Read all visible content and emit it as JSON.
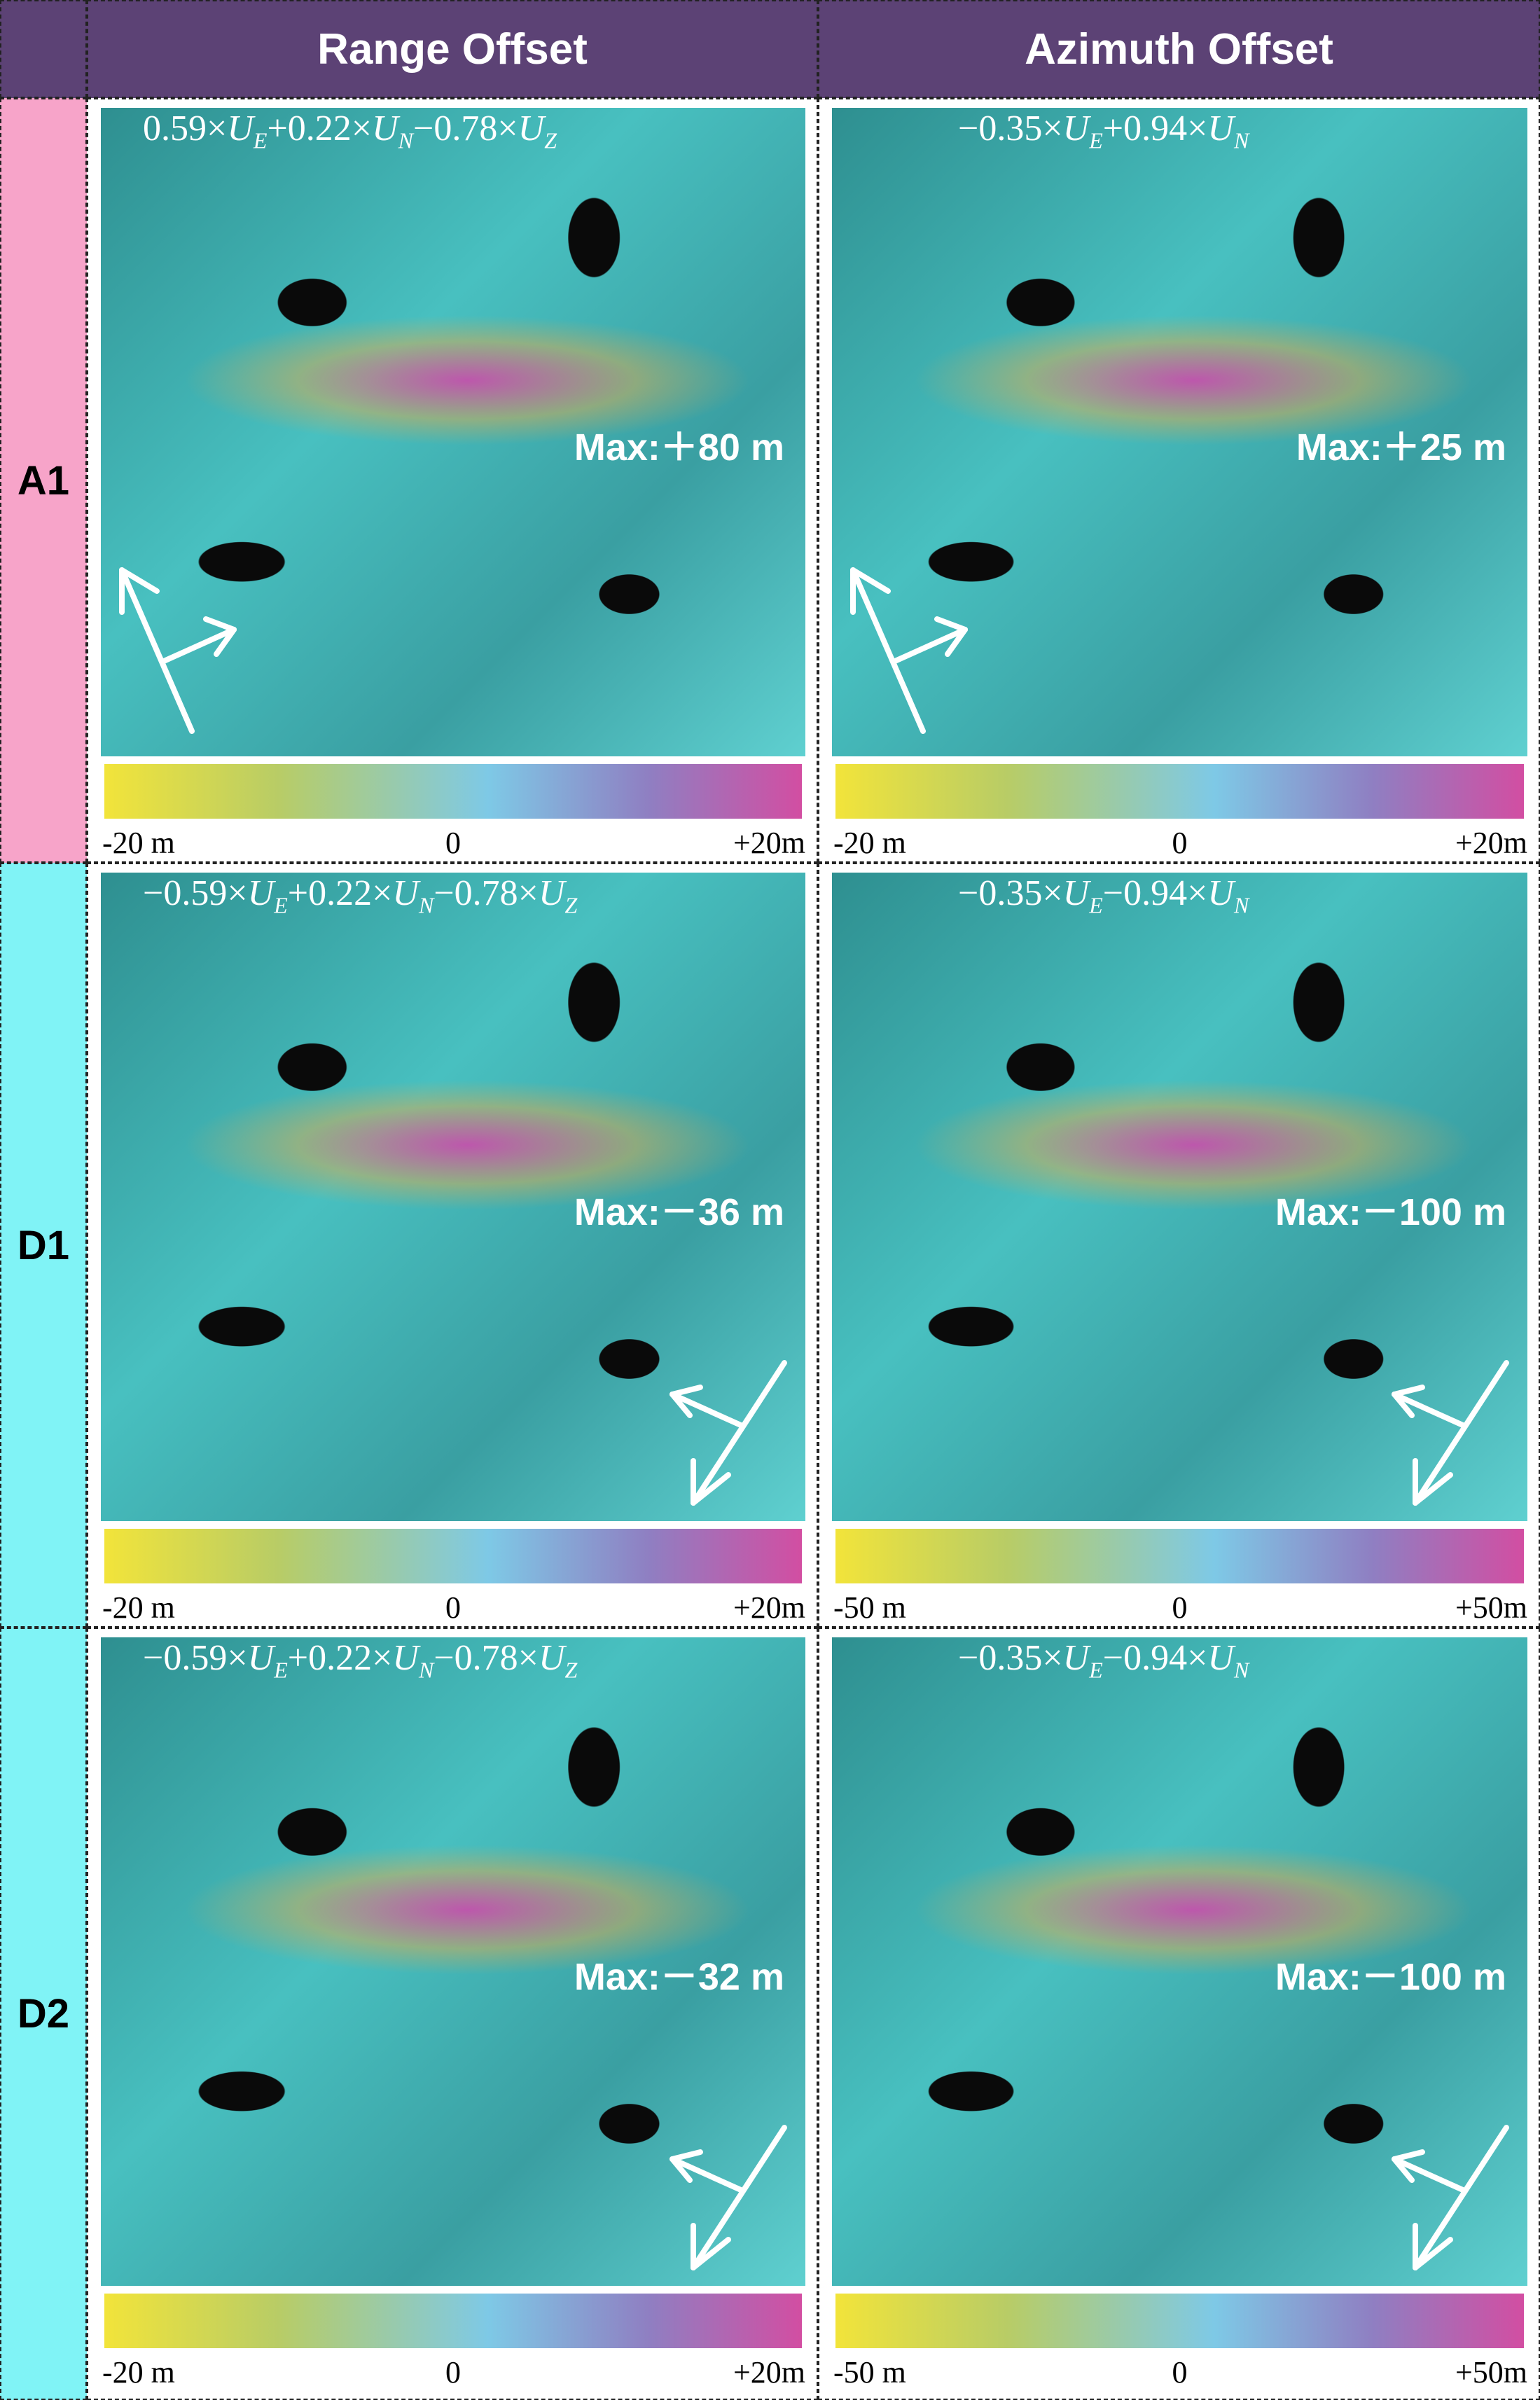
{
  "header": {
    "columns": [
      "Range Offset",
      "Azimuth Offset"
    ]
  },
  "rows": [
    {
      "label": "A1",
      "cells": [
        {
          "formula": [
            {
              "coef": "0.59×",
              "var": "U",
              "sub": "E"
            },
            {
              "coef": "+0.22×",
              "var": "U",
              "sub": "N"
            },
            {
              "coef": "−0.78×",
              "var": "U",
              "sub": "Z"
            }
          ],
          "max": "Max:＋80 m",
          "colorbar": {
            "left": "-20 m",
            "mid": "0",
            "right": "+20m"
          }
        },
        {
          "formula": [
            {
              "coef": "−0.35×",
              "var": "U",
              "sub": "E"
            },
            {
              "coef": "+0.94×",
              "var": "U",
              "sub": "N"
            }
          ],
          "max": "Max:＋25 m",
          "colorbar": {
            "left": "-20 m",
            "mid": "0",
            "right": "+20m"
          }
        }
      ]
    },
    {
      "label": "D1",
      "cells": [
        {
          "formula": [
            {
              "coef": "−0.59×",
              "var": "U",
              "sub": "E"
            },
            {
              "coef": "+0.22×",
              "var": "U",
              "sub": "N"
            },
            {
              "coef": "−0.78×",
              "var": "U",
              "sub": "Z"
            }
          ],
          "max": "Max:－36 m",
          "colorbar": {
            "left": "-20 m",
            "mid": "0",
            "right": "+20m"
          }
        },
        {
          "formula": [
            {
              "coef": "−0.35×",
              "var": "U",
              "sub": "E"
            },
            {
              "coef": "−0.94×",
              "var": "U",
              "sub": "N"
            }
          ],
          "max": "Max:－100 m",
          "colorbar": {
            "left": "-50 m",
            "mid": "0",
            "right": "+50m"
          }
        }
      ]
    },
    {
      "label": "D2",
      "cells": [
        {
          "formula": [
            {
              "coef": "−0.59×",
              "var": "U",
              "sub": "E"
            },
            {
              "coef": "+0.22×",
              "var": "U",
              "sub": "N"
            },
            {
              "coef": "−0.78×",
              "var": "U",
              "sub": "Z"
            }
          ],
          "max": "Max:－32 m",
          "colorbar": {
            "left": "-20 m",
            "mid": "0",
            "right": "+20m"
          }
        },
        {
          "formula": [
            {
              "coef": "−0.35×",
              "var": "U",
              "sub": "E"
            },
            {
              "coef": "−0.94×",
              "var": "U",
              "sub": "N"
            }
          ],
          "max": "Max:－100 m",
          "colorbar": {
            "left": "-50 m",
            "mid": "0",
            "right": "+50m"
          }
        }
      ]
    }
  ]
}
